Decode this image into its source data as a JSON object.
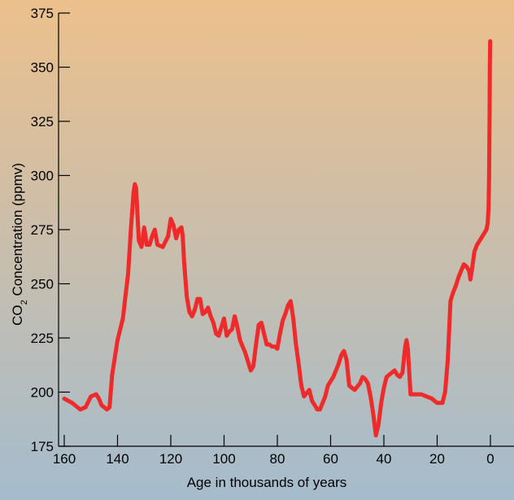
{
  "chart_data": {
    "type": "line",
    "xlabel": "Age in thousands of years",
    "ylabel_main": "CO",
    "ylabel_sub": "2",
    "ylabel_rest": " Concentration (ppmv)",
    "xlim": [
      160,
      0
    ],
    "ylim": [
      175,
      375
    ],
    "x_ticks": [
      160,
      140,
      120,
      100,
      80,
      60,
      40,
      20,
      0
    ],
    "y_ticks": [
      175,
      200,
      225,
      250,
      275,
      300,
      325,
      350,
      375
    ],
    "grid": false,
    "colors": {
      "line": "#ee2a2a",
      "bg_top": "#ecc08c",
      "bg_bottom": "#a5bccd"
    },
    "series": [
      {
        "x": [
          160,
          157,
          154,
          152,
          150,
          148,
          147,
          146,
          144,
          143,
          142,
          140,
          138,
          136,
          135,
          134,
          133.5,
          133,
          132,
          131,
          130,
          129,
          128,
          127,
          126,
          125,
          123,
          121,
          120,
          119,
          118,
          117,
          116,
          115.5,
          115,
          114,
          113,
          112,
          111,
          110,
          109,
          108,
          107,
          106,
          105,
          104,
          103,
          102,
          100,
          99,
          98,
          97,
          96,
          95,
          94,
          92,
          90,
          89,
          88,
          87,
          86,
          84,
          83,
          82,
          81,
          80,
          79,
          78,
          77,
          76,
          75,
          74,
          73,
          72,
          71,
          70,
          68,
          67,
          65,
          64,
          62,
          61,
          59,
          57,
          56,
          55,
          54,
          53,
          51,
          49,
          48,
          47,
          46,
          45,
          44,
          43,
          42,
          41,
          40,
          39,
          38,
          36,
          35,
          34,
          33,
          32,
          31.5,
          31,
          30.5,
          30,
          28,
          26,
          24,
          22,
          20,
          18,
          17,
          16,
          15,
          14,
          13,
          12,
          11,
          10,
          9,
          8,
          7.5,
          7,
          6,
          5,
          4,
          3,
          1.5,
          1,
          0.7,
          0.5,
          0.3,
          0.2,
          0.1
        ],
        "y": [
          197,
          195,
          192,
          193,
          198,
          199,
          197,
          194,
          192,
          193,
          208,
          224,
          234,
          255,
          275,
          292,
          296,
          294,
          270,
          267,
          276,
          268,
          268,
          272,
          275,
          268,
          267,
          272,
          280,
          277,
          271,
          275,
          276,
          272,
          260,
          244,
          237,
          235,
          238,
          243,
          243,
          236,
          237,
          239,
          235,
          232,
          227,
          226,
          234,
          226,
          228,
          229,
          235,
          230,
          224,
          218,
          210,
          212,
          222,
          231,
          232,
          222,
          222,
          221,
          221,
          220,
          227,
          233,
          236,
          240,
          242,
          234,
          222,
          213,
          203,
          198,
          201,
          196,
          192,
          192,
          198,
          203,
          207,
          213,
          217,
          219,
          215,
          203,
          201,
          204,
          207,
          206,
          204,
          198,
          190,
          180,
          185,
          195,
          202,
          207,
          208,
          210,
          208,
          207,
          209,
          221,
          224,
          220,
          210,
          199,
          199,
          199,
          198,
          197,
          195,
          195,
          200,
          215,
          242,
          246,
          249,
          253,
          256,
          259,
          258,
          256,
          252,
          256,
          265,
          268,
          270,
          272,
          275,
          278,
          285,
          300,
          330,
          350,
          362
        ]
      }
    ]
  }
}
